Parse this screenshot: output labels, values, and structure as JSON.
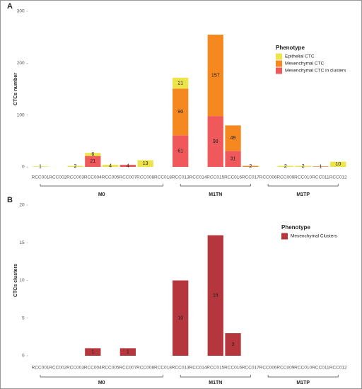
{
  "chart_data": [
    {
      "type": "bar",
      "label": "A",
      "stacked": true,
      "ylabel": "CTCs number",
      "categories": [
        "RCC001",
        "RCC002",
        "RCC003",
        "RCC004",
        "RCC005",
        "RCC007",
        "RCC008",
        "RCC018",
        "RCC013",
        "RCC014",
        "RCC015",
        "RCC016",
        "RCC017",
        "RCC006",
        "RCC009",
        "RCC010",
        "RCC011",
        "RCC012"
      ],
      "groups": {
        "labels": [
          "M0",
          "M1TN",
          "M1TP"
        ],
        "sizes": [
          8,
          5,
          5
        ]
      },
      "legend_title": "Phenotype",
      "series": [
        {
          "name": "Mesenchymal CTC in clusters",
          "color": "#f0595c",
          "values": [
            null,
            null,
            null,
            21,
            null,
            4,
            null,
            null,
            61,
            null,
            98,
            31,
            null,
            null,
            null,
            null,
            null,
            null
          ]
        },
        {
          "name": "Mesenchymal CTC",
          "color": "#f5881f",
          "values": [
            null,
            null,
            null,
            null,
            null,
            null,
            null,
            null,
            90,
            null,
            157,
            49,
            2,
            null,
            null,
            null,
            1,
            null
          ]
        },
        {
          "name": "Epithelial CTC",
          "color": "#ede34b",
          "values": [
            1,
            null,
            2,
            6,
            4,
            null,
            13,
            null,
            21,
            null,
            null,
            null,
            null,
            null,
            2,
            2,
            null,
            10
          ]
        }
      ],
      "ylim": [
        0,
        300
      ],
      "yticks": [
        0,
        100,
        200,
        300
      ]
    },
    {
      "type": "bar",
      "label": "B",
      "stacked": false,
      "ylabel": "CTCs clusters",
      "categories": [
        "RCC001",
        "RCC002",
        "RCC003",
        "RCC004",
        "RCC005",
        "RCC007",
        "RCC008",
        "RCC018",
        "RCC013",
        "RCC014",
        "RCC015",
        "RCC016",
        "RCC017",
        "RCC006",
        "RCC009",
        "RCC010",
        "RCC011",
        "RCC012"
      ],
      "groups": {
        "labels": [
          "M0",
          "M1TN",
          "M1TP"
        ],
        "sizes": [
          8,
          5,
          5
        ]
      },
      "legend_title": "Phenotype",
      "series": [
        {
          "name": "Mesenchymal Clusters",
          "color": "#b5373d",
          "values": [
            null,
            null,
            null,
            1,
            null,
            1,
            null,
            null,
            10,
            null,
            16,
            3,
            null,
            null,
            null,
            null,
            null,
            null
          ]
        }
      ],
      "ylim": [
        0,
        20
      ],
      "yticks": [
        0,
        5,
        10,
        15,
        20
      ]
    }
  ]
}
